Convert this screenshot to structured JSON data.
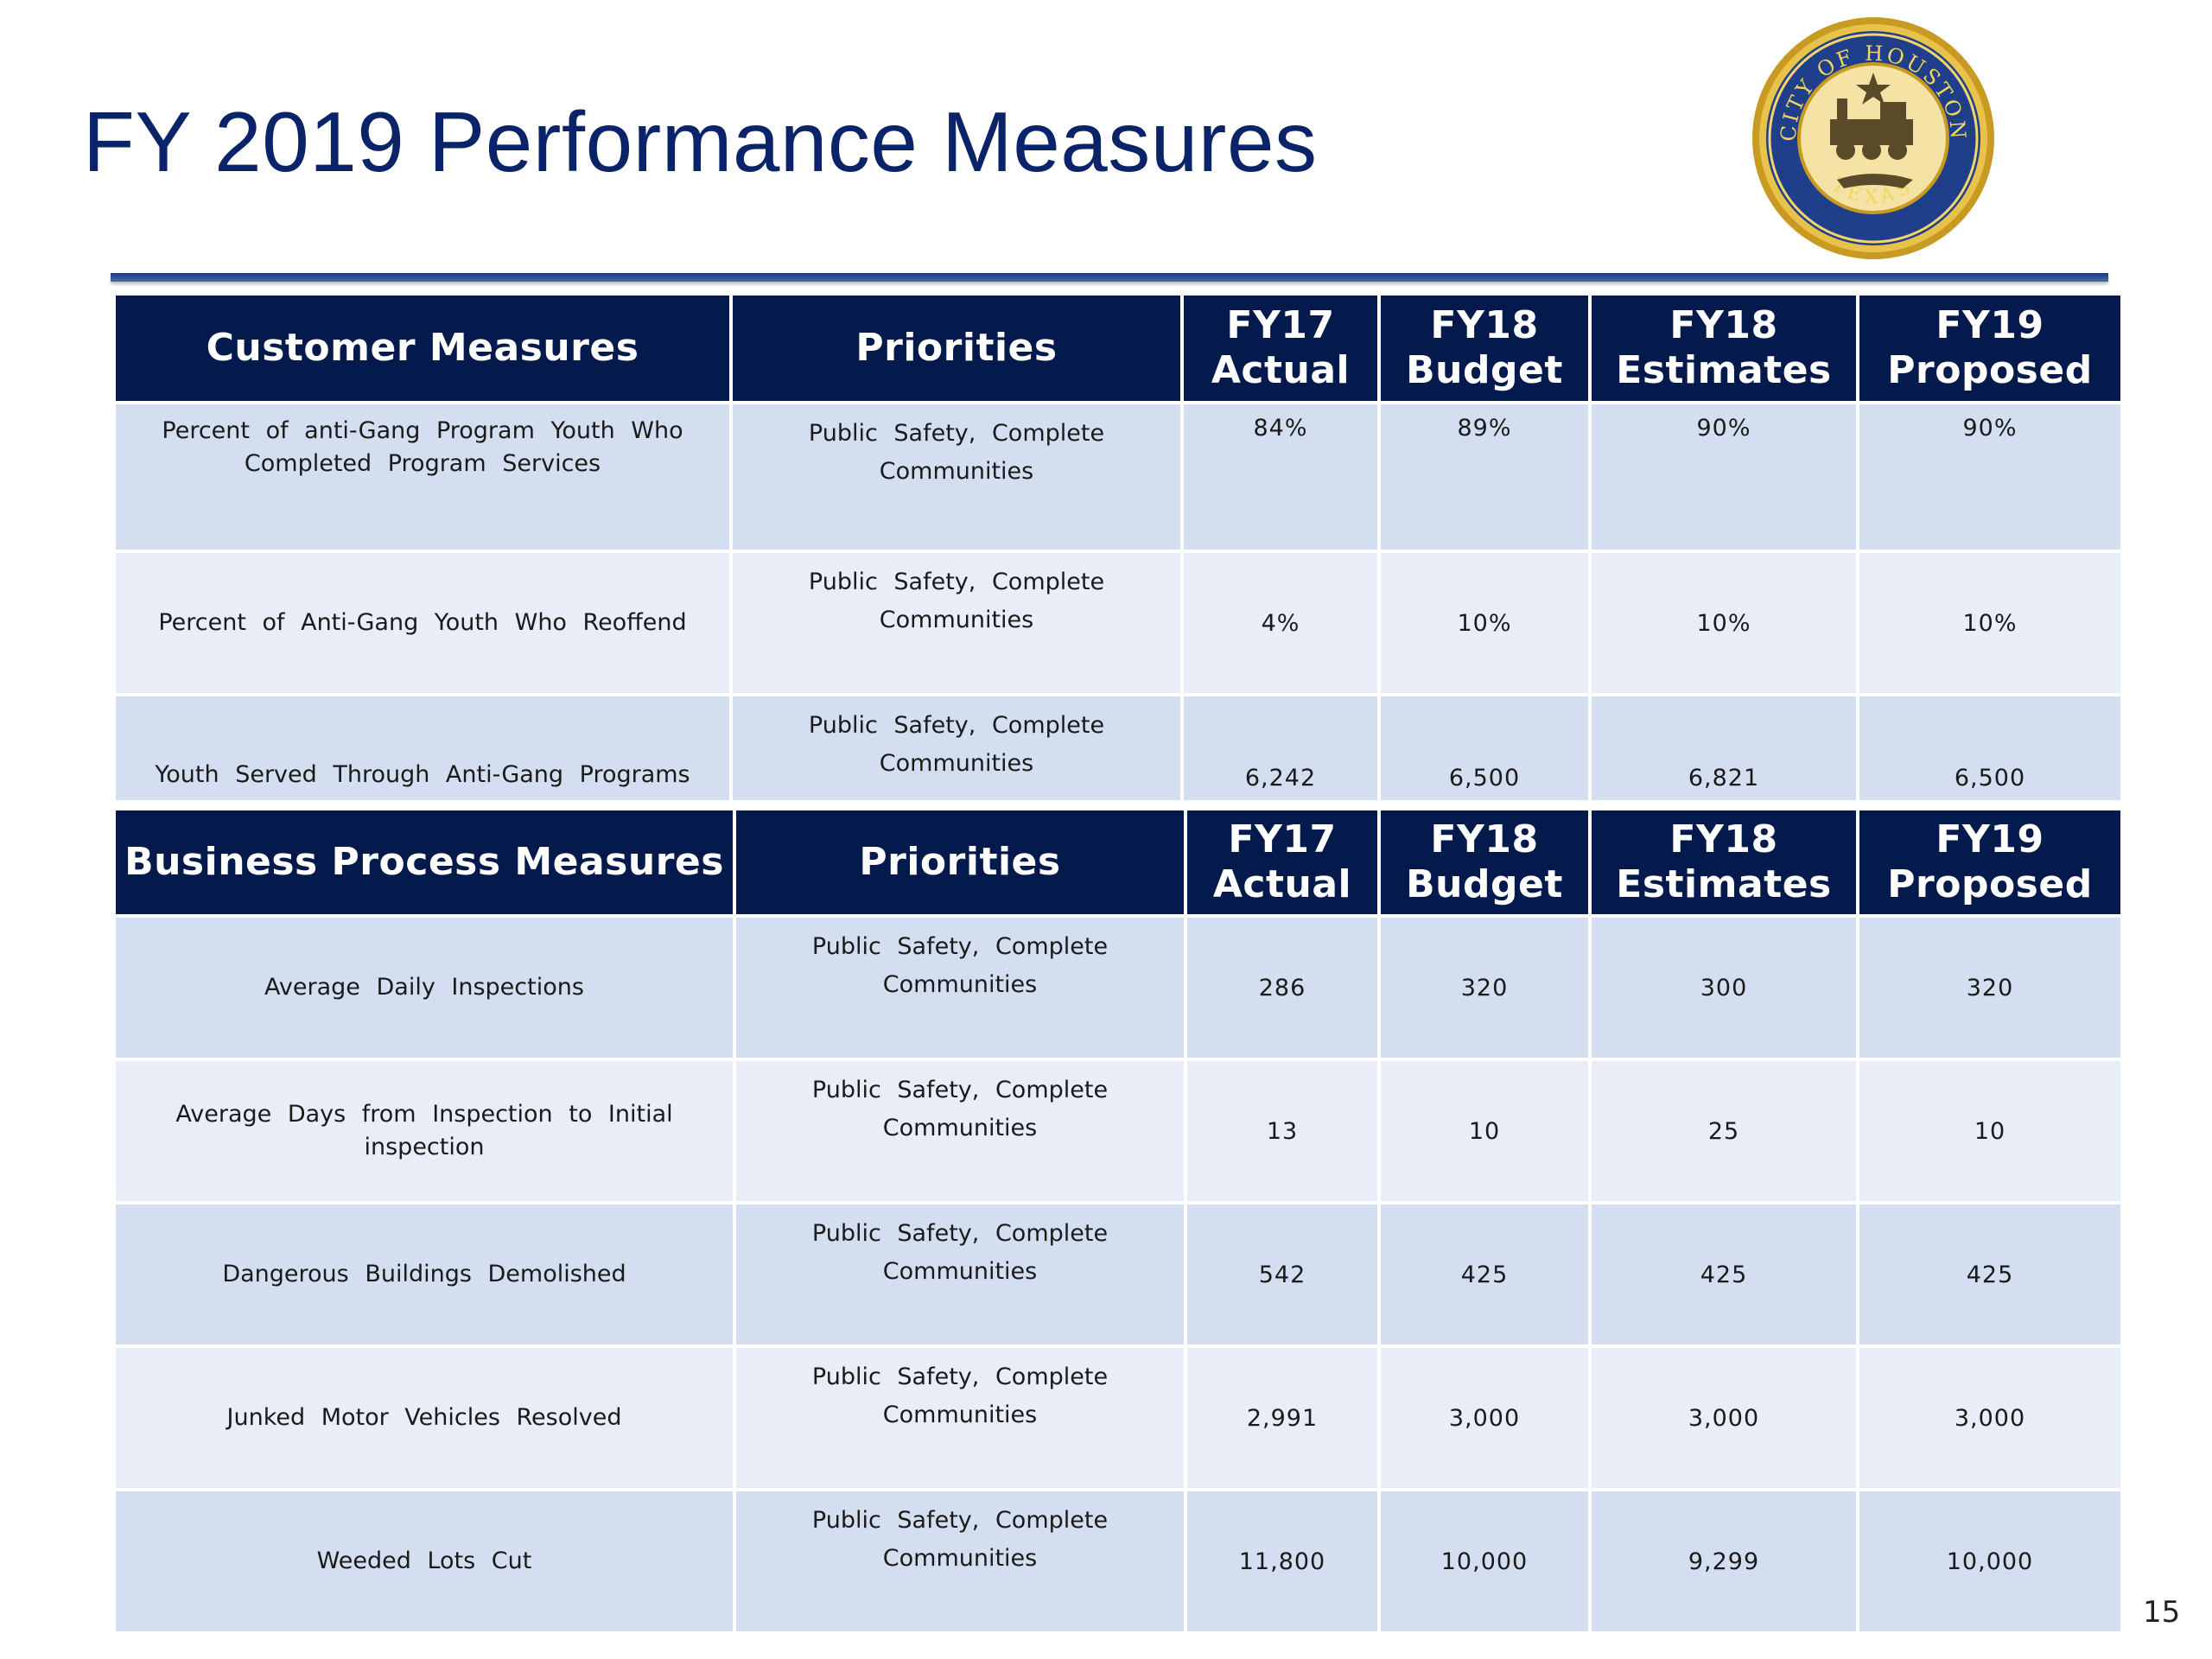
{
  "slide": {
    "title": "FY 2019 Performance Measures",
    "page_number": "15",
    "seal_text": {
      "top": "CITY OF HOUSTON",
      "bottom": "TEXAS"
    }
  },
  "customer_table": {
    "headers": {
      "measure": "Customer Measures",
      "priorities": "Priorities",
      "fy17_line1": "FY17",
      "fy17_line2": "Actual",
      "fy18b_line1": "FY18",
      "fy18b_line2": "Budget",
      "fy18e_line1": "FY18",
      "fy18e_line2": "Estimates",
      "fy19_line1": "FY19",
      "fy19_line2": "Proposed"
    },
    "rows": [
      {
        "measure_line1": "Percent of anti-Gang Program Youth Who",
        "measure_line2": "Completed Program Services",
        "priorities_line1": "Public Safety, Complete",
        "priorities_line2": "Communities",
        "fy17": "84%",
        "fy18_budget": "89%",
        "fy18_est": "90%",
        "fy19": "90%"
      },
      {
        "measure_line1": "Percent of Anti-Gang Youth Who Reoffend",
        "measure_line2": "",
        "priorities_line1": "Public Safety, Complete",
        "priorities_line2": "Communities",
        "fy17": "4%",
        "fy18_budget": "10%",
        "fy18_est": "10%",
        "fy19": "10%"
      },
      {
        "measure_line1": "Youth Served Through Anti-Gang Programs",
        "measure_line2": "",
        "priorities_line1": "Public Safety, Complete",
        "priorities_line2": "Communities",
        "fy17": "6,242",
        "fy18_budget": "6,500",
        "fy18_est": "6,821",
        "fy19": "6,500"
      }
    ]
  },
  "business_table": {
    "headers": {
      "measure": "Business Process Measures",
      "priorities": "Priorities",
      "fy17_line1": "FY17",
      "fy17_line2": "Actual",
      "fy18b_line1": "FY18",
      "fy18b_line2": "Budget",
      "fy18e_line1": "FY18",
      "fy18e_line2": "Estimates",
      "fy19_line1": "FY19",
      "fy19_line2": "Proposed"
    },
    "rows": [
      {
        "measure_line1": "Average Daily Inspections",
        "measure_line2": "",
        "priorities_line1": "Public Safety, Complete",
        "priorities_line2": "Communities",
        "fy17": "286",
        "fy18_budget": "320",
        "fy18_est": "300",
        "fy19": "320"
      },
      {
        "measure_line1": "Average Days from Inspection to Initial",
        "measure_line2": "inspection",
        "priorities_line1": "Public Safety, Complete",
        "priorities_line2": "Communities",
        "fy17": "13",
        "fy18_budget": "10",
        "fy18_est": "25",
        "fy19": "10"
      },
      {
        "measure_line1": "Dangerous Buildings Demolished",
        "measure_line2": "",
        "priorities_line1": "Public Safety, Complete",
        "priorities_line2": "Communities",
        "fy17": "542",
        "fy18_budget": "425",
        "fy18_est": "425",
        "fy19": "425"
      },
      {
        "measure_line1": "Junked Motor Vehicles Resolved",
        "measure_line2": "",
        "priorities_line1": "Public Safety, Complete",
        "priorities_line2": "Communities",
        "fy17": "2,991",
        "fy18_budget": "3,000",
        "fy18_est": "3,000",
        "fy19": "3,000"
      },
      {
        "measure_line1": "Weeded Lots Cut",
        "measure_line2": "",
        "priorities_line1": "Public Safety, Complete",
        "priorities_line2": "Communities",
        "fy17": "11,800",
        "fy18_budget": "10,000",
        "fy18_est": "9,299",
        "fy19": "10,000"
      }
    ]
  },
  "colors": {
    "title": "#0b2469",
    "header_bg": "#041a4d",
    "row_dark": "#d3dff0",
    "row_light": "#e9edf7",
    "seal_gold": "#d4a72c",
    "seal_blue": "#1f3f8a"
  }
}
